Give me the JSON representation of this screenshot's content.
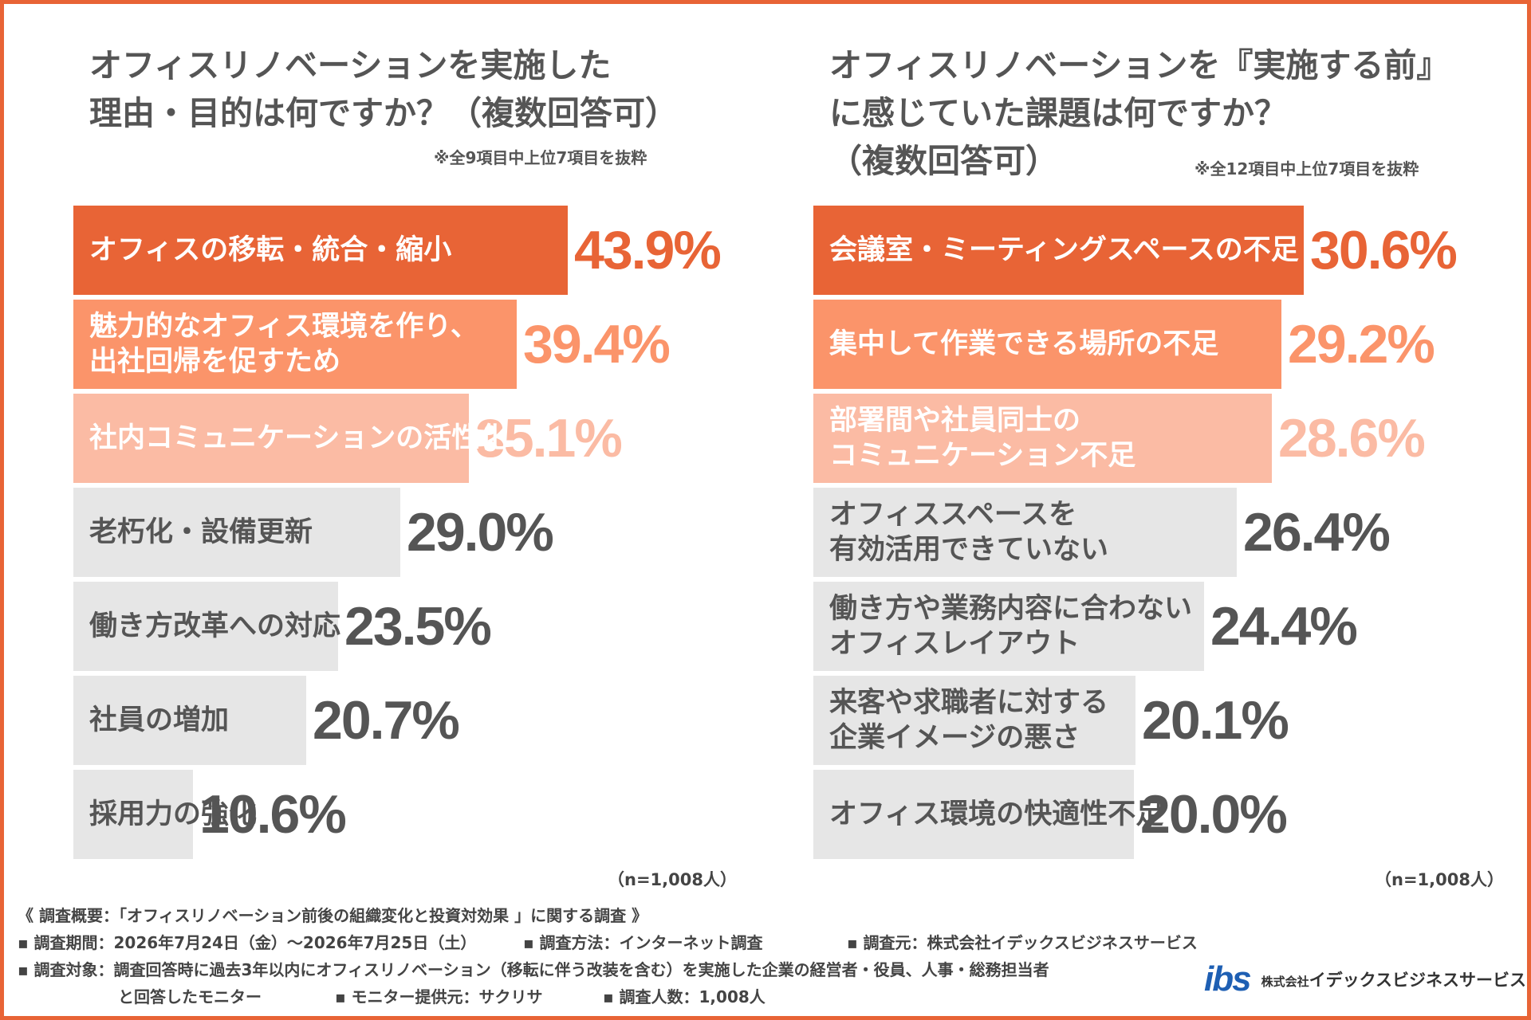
{
  "chart_data": [
    {
      "type": "bar",
      "title_lines": [
        "オフィスリノベーションを実施した",
        "理由・目的は何ですか？（複数回答可）"
      ],
      "note": "※全9項目中上位7項目を抜粋",
      "n_label": "（n=1,008人）",
      "unit": "%",
      "categories": [
        [
          "オフィスの移転・統合・縮小"
        ],
        [
          "魅力的なオフィス環境を作り、",
          "出社回帰を促すため"
        ],
        [
          "社内コミュニケーションの活性化"
        ],
        [
          "老朽化・設備更新"
        ],
        [
          "働き方改革への対応"
        ],
        [
          "社員の増加"
        ],
        [
          "採用力の強化"
        ]
      ],
      "values": [
        43.9,
        39.4,
        35.1,
        29.0,
        23.5,
        20.7,
        10.6
      ],
      "value_labels": [
        "43.9%",
        "39.4%",
        "35.1%",
        "29.0%",
        "23.5%",
        "20.7%",
        "10.6%"
      ],
      "xlim": [
        0,
        43.9
      ]
    },
    {
      "type": "bar",
      "title_lines": [
        "オフィスリノベーションを『実施する前』",
        "に感じていた課題は何ですか？",
        "（複数回答可）"
      ],
      "note": "※全12項目中上位7項目を抜粋",
      "n_label": "（n=1,008人）",
      "unit": "%",
      "categories": [
        [
          "会議室・ミーティングスペースの不足"
        ],
        [
          "集中して作業できる場所の不足"
        ],
        [
          "部署間や社員同士の",
          "コミュニケーション不足"
        ],
        [
          "オフィススペースを",
          "有効活用できていない"
        ],
        [
          "働き方や業務内容に合わない",
          "オフィスレイアウト"
        ],
        [
          "来客や求職者に対する",
          "企業イメージの悪さ"
        ],
        [
          "オフィス環境の快適性不足"
        ]
      ],
      "values": [
        30.6,
        29.2,
        28.6,
        26.4,
        24.4,
        20.1,
        20.0
      ],
      "value_labels": [
        "30.6%",
        "29.2%",
        "28.6%",
        "26.4%",
        "24.4%",
        "20.1%",
        "20.0%"
      ],
      "xlim": [
        0,
        30.6
      ]
    }
  ],
  "colors": {
    "border": "#E86436",
    "rank1": "#E86436",
    "rank2": "#FB946A",
    "rank3": "#FBBBA4",
    "other": "#E6E6E6",
    "text_dark": "#555555",
    "text_light": "#ffffff"
  },
  "footer": {
    "summary": "《 調査概要：「オフィスリノベーション前後の組織変化と投資対効果 」に関する調査 》",
    "period": "▪ 調査期間：2026年7月24日（金）〜2026年7月25日（土）",
    "method": "▪ 調査方法：インターネット調査",
    "source": "▪ 調査元：株式会社イデックスビジネスサービス",
    "target": "▪ 調査対象：調査回答時に過去3年以内にオフィスリノベーション（移転に伴う改装を含む）を実施した企業の経営者・役員、人事・総務担当者",
    "target_cont": "と回答したモニター",
    "provider": "▪ モニター提供元：サクリサ",
    "count": "▪ 調査人数：1,008人"
  },
  "logo": {
    "mark": "ibs",
    "prefix": "株式会社",
    "name": "イデックスビジネスサービス"
  }
}
